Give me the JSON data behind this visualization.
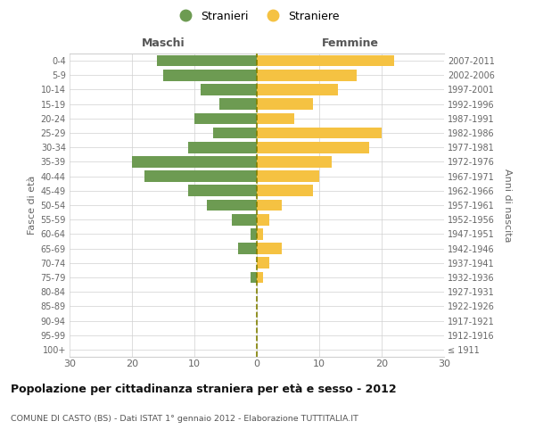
{
  "age_groups": [
    "100+",
    "95-99",
    "90-94",
    "85-89",
    "80-84",
    "75-79",
    "70-74",
    "65-69",
    "60-64",
    "55-59",
    "50-54",
    "45-49",
    "40-44",
    "35-39",
    "30-34",
    "25-29",
    "20-24",
    "15-19",
    "10-14",
    "5-9",
    "0-4"
  ],
  "birth_years": [
    "≤ 1911",
    "1912-1916",
    "1917-1921",
    "1922-1926",
    "1927-1931",
    "1932-1936",
    "1937-1941",
    "1942-1946",
    "1947-1951",
    "1952-1956",
    "1957-1961",
    "1962-1966",
    "1967-1971",
    "1972-1976",
    "1977-1981",
    "1982-1986",
    "1987-1991",
    "1992-1996",
    "1997-2001",
    "2002-2006",
    "2007-2011"
  ],
  "maschi": [
    0,
    0,
    0,
    0,
    0,
    1,
    0,
    3,
    1,
    4,
    8,
    11,
    18,
    20,
    11,
    7,
    10,
    6,
    9,
    15,
    16
  ],
  "femmine": [
    0,
    0,
    0,
    0,
    0,
    1,
    2,
    4,
    1,
    2,
    4,
    9,
    10,
    12,
    18,
    20,
    6,
    9,
    13,
    16,
    22
  ],
  "maschi_color": "#6d9b52",
  "femmine_color": "#f5c242",
  "grid_color": "#d0d0d0",
  "title": "Popolazione per cittadinanza straniera per età e sesso - 2012",
  "subtitle": "COMUNE DI CASTO (BS) - Dati ISTAT 1° gennaio 2012 - Elaborazione TUTTITALIA.IT",
  "label_maschi": "Maschi",
  "label_femmine": "Femmine",
  "ylabel_left": "Fasce di età",
  "ylabel_right": "Anni di nascita",
  "legend_stranieri": "Stranieri",
  "legend_straniere": "Straniere",
  "xlim": 30,
  "dashed_line_color": "#808000"
}
